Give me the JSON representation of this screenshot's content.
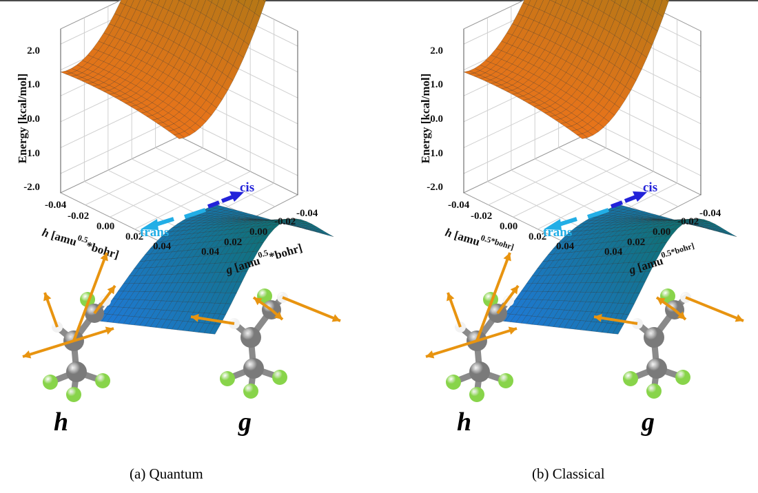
{
  "panels": [
    {
      "caption": "(a) Quantum",
      "energy_axis": {
        "label": "Energy [kcal/mol]",
        "ticks": [
          "2.0",
          "1.0",
          "0.0",
          "-1.0",
          "-2.0"
        ]
      },
      "h_axis": {
        "label_var": "h",
        "label_pre": " [amu",
        "label_sup": "0.5",
        "label_post": "*bohr]",
        "ticks": [
          "-0.04",
          "-0.02",
          "0.00",
          "0.02",
          "0.04"
        ]
      },
      "g_axis": {
        "label_var": "g",
        "label_pre": " [amu",
        "label_sup": "0.5",
        "label_post": "*bohr]",
        "ticks": [
          "0.04",
          "0.02",
          "0.00",
          "-0.02",
          "-0.04"
        ]
      },
      "arrow_labels": {
        "cis": "cis",
        "trans": "trans"
      },
      "mode_labels": {
        "h": "h",
        "g": "g"
      }
    },
    {
      "caption": "(b) Classical",
      "energy_axis": {
        "label": "Energy [kcal/mol]",
        "ticks": [
          "2.0",
          "1.0",
          "0.0",
          "-1.0",
          "-2.0"
        ]
      },
      "h_axis": {
        "label_var": "h",
        "label_pre": " [amu",
        "label_sup": "0.5*bohr]",
        "label_post": "",
        "ticks": [
          "-0.04",
          "-0.02",
          "0.00",
          "0.02",
          "0.04"
        ]
      },
      "g_axis": {
        "label_var": "g",
        "label_pre": " [amu",
        "label_sup": "0.5*bohr]",
        "label_post": "",
        "ticks": [
          "0.04",
          "0.02",
          "0.00",
          "-0.02",
          "-0.04"
        ]
      },
      "arrow_labels": {
        "cis": "cis",
        "trans": "trans"
      },
      "mode_labels": {
        "h": "h",
        "g": "g"
      }
    }
  ],
  "colors": {
    "upper_surface_low": "#e8741a",
    "upper_surface_high": "#7f7a12",
    "lower_surface_low": "#1f7ad8",
    "lower_surface_high": "#0f6f70",
    "trans_arrow": "#22aee6",
    "cis_arrow": "#2323d9",
    "carbon_atom": "#7a7a7a",
    "fluorine_atom": "#88d44a",
    "hydrogen_atom": "#f2f2f2",
    "displacement_vector": "#e89410",
    "grid": "#cfcfcf"
  }
}
